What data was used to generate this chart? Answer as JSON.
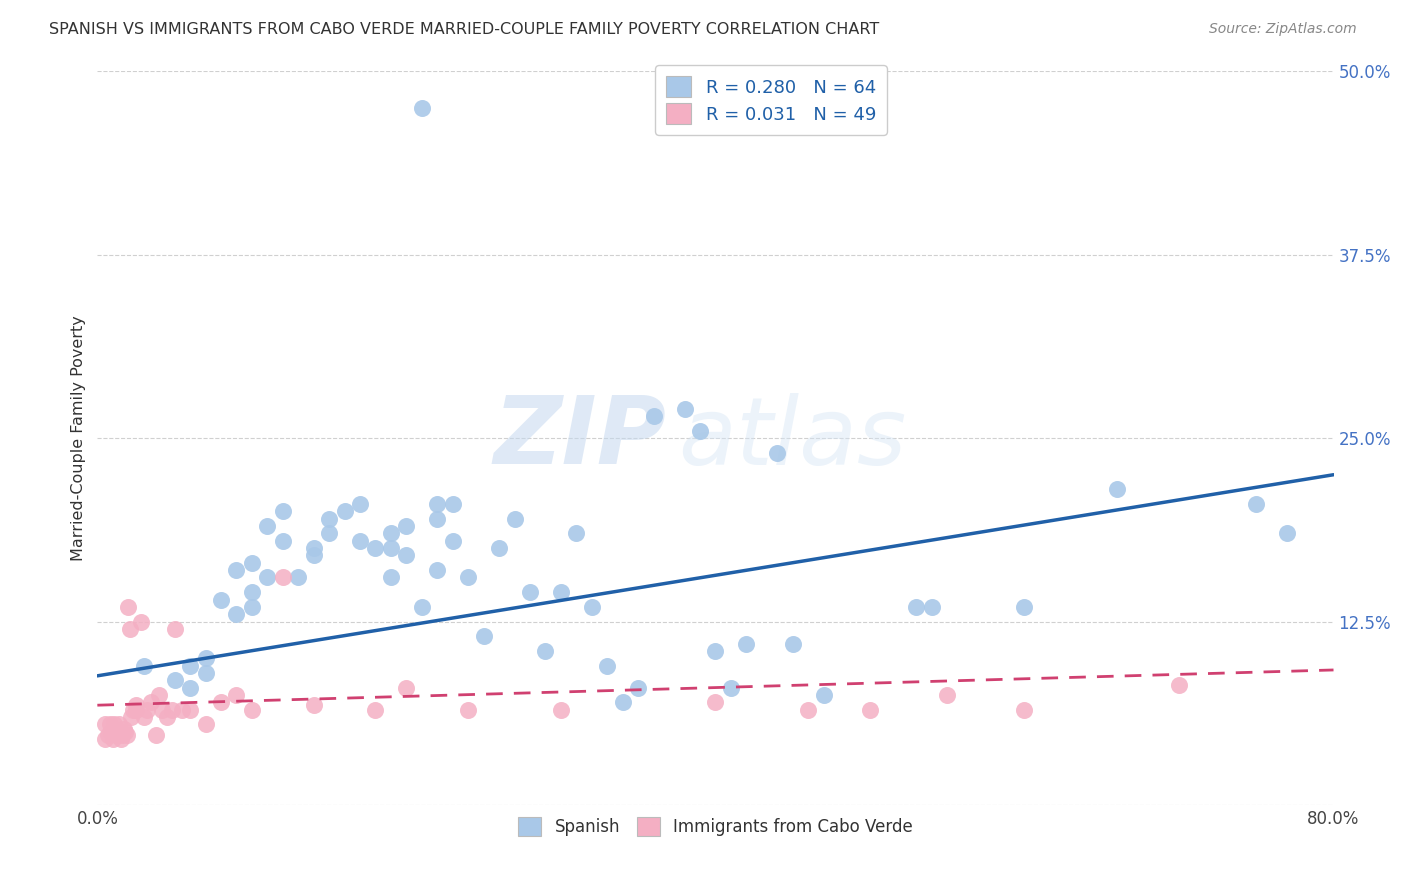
{
  "title": "SPANISH VS IMMIGRANTS FROM CABO VERDE MARRIED-COUPLE FAMILY POVERTY CORRELATION CHART",
  "source": "Source: ZipAtlas.com",
  "ylabel": "Married-Couple Family Poverty",
  "xlim": [
    0,
    0.8
  ],
  "ylim": [
    0,
    0.5
  ],
  "yticks": [
    0.0,
    0.125,
    0.25,
    0.375,
    0.5
  ],
  "yticklabels": [
    "",
    "12.5%",
    "25.0%",
    "37.5%",
    "50.0%"
  ],
  "xticks": [
    0.0,
    0.2,
    0.4,
    0.6,
    0.8
  ],
  "xticklabels": [
    "0.0%",
    "",
    "",
    "",
    "80.0%"
  ],
  "spanish_R": 0.28,
  "spanish_N": 64,
  "caboverde_R": 0.031,
  "caboverde_N": 49,
  "legend_label1": "Spanish",
  "legend_label2": "Immigrants from Cabo Verde",
  "spanish_color": "#a9c8e8",
  "caboverde_color": "#f4afc3",
  "spanish_line_color": "#2060a8",
  "caboverde_line_color": "#d04070",
  "watermark_zip": "ZIP",
  "watermark_atlas": "atlas",
  "background_color": "#ffffff",
  "grid_color": "#d0d0d0",
  "spanish_line_x0": 0.0,
  "spanish_line_y0": 0.088,
  "spanish_line_x1": 0.8,
  "spanish_line_y1": 0.225,
  "caboverde_line_x0": 0.0,
  "caboverde_line_y0": 0.068,
  "caboverde_line_x1": 0.8,
  "caboverde_line_y1": 0.092,
  "spanish_x": [
    0.21,
    0.03,
    0.05,
    0.06,
    0.06,
    0.07,
    0.07,
    0.08,
    0.09,
    0.09,
    0.1,
    0.1,
    0.1,
    0.11,
    0.11,
    0.12,
    0.12,
    0.13,
    0.14,
    0.14,
    0.15,
    0.15,
    0.16,
    0.17,
    0.17,
    0.18,
    0.19,
    0.19,
    0.2,
    0.21,
    0.22,
    0.22,
    0.23,
    0.24,
    0.25,
    0.26,
    0.27,
    0.28,
    0.29,
    0.3,
    0.31,
    0.32,
    0.33,
    0.34,
    0.35,
    0.36,
    0.38,
    0.39,
    0.4,
    0.41,
    0.42,
    0.44,
    0.45,
    0.47,
    0.53,
    0.54,
    0.6,
    0.66,
    0.75,
    0.77,
    0.19,
    0.2,
    0.22,
    0.23
  ],
  "spanish_y": [
    0.475,
    0.095,
    0.085,
    0.08,
    0.095,
    0.09,
    0.1,
    0.14,
    0.13,
    0.16,
    0.135,
    0.145,
    0.165,
    0.155,
    0.19,
    0.18,
    0.2,
    0.155,
    0.17,
    0.175,
    0.185,
    0.195,
    0.2,
    0.205,
    0.18,
    0.175,
    0.175,
    0.185,
    0.19,
    0.135,
    0.16,
    0.195,
    0.205,
    0.155,
    0.115,
    0.175,
    0.195,
    0.145,
    0.105,
    0.145,
    0.185,
    0.135,
    0.095,
    0.07,
    0.08,
    0.265,
    0.27,
    0.255,
    0.105,
    0.08,
    0.11,
    0.24,
    0.11,
    0.075,
    0.135,
    0.135,
    0.135,
    0.215,
    0.205,
    0.185,
    0.155,
    0.17,
    0.205,
    0.18
  ],
  "caboverde_x": [
    0.005,
    0.005,
    0.007,
    0.008,
    0.009,
    0.01,
    0.011,
    0.012,
    0.013,
    0.014,
    0.015,
    0.016,
    0.017,
    0.018,
    0.019,
    0.02,
    0.021,
    0.022,
    0.023,
    0.025,
    0.025,
    0.028,
    0.03,
    0.032,
    0.035,
    0.038,
    0.04,
    0.042,
    0.045,
    0.048,
    0.05,
    0.055,
    0.06,
    0.07,
    0.08,
    0.09,
    0.1,
    0.12,
    0.14,
    0.18,
    0.2,
    0.24,
    0.3,
    0.4,
    0.46,
    0.5,
    0.55,
    0.6,
    0.7
  ],
  "caboverde_y": [
    0.045,
    0.055,
    0.048,
    0.055,
    0.05,
    0.045,
    0.055,
    0.048,
    0.05,
    0.055,
    0.045,
    0.048,
    0.052,
    0.05,
    0.048,
    0.135,
    0.12,
    0.06,
    0.065,
    0.065,
    0.068,
    0.125,
    0.06,
    0.065,
    0.07,
    0.048,
    0.075,
    0.065,
    0.06,
    0.065,
    0.12,
    0.065,
    0.065,
    0.055,
    0.07,
    0.075,
    0.065,
    0.155,
    0.068,
    0.065,
    0.08,
    0.065,
    0.065,
    0.07,
    0.065,
    0.065,
    0.075,
    0.065,
    0.082
  ]
}
